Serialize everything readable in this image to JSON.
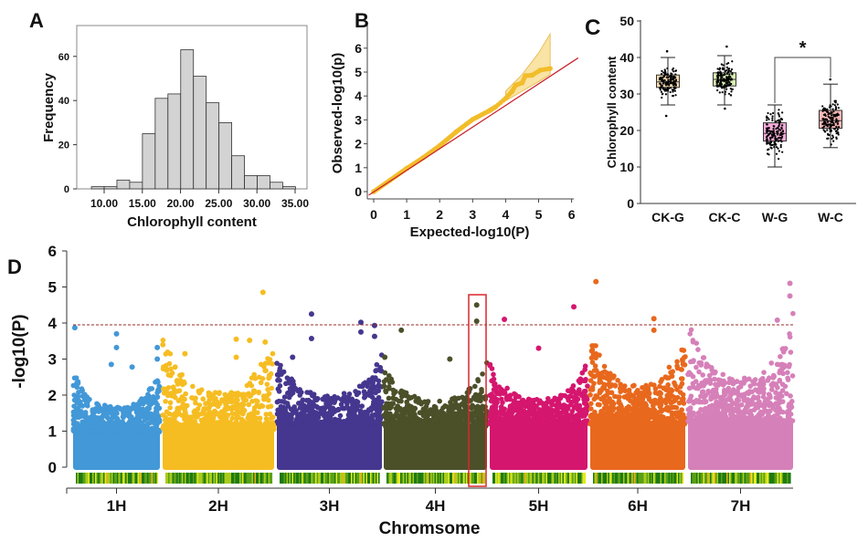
{
  "chart_data": [
    {
      "panel": "A",
      "type": "bar",
      "xlabel": "Chlorophyll content",
      "ylabel": "Frequency",
      "x_ticks": [
        "10.00",
        "15.00",
        "20.00",
        "25.00",
        "30.00",
        "35.00"
      ],
      "y_ticks": [
        "0",
        "20",
        "40",
        "60"
      ],
      "bin_start": 8.33,
      "bin_width": 1.67,
      "values": [
        1,
        1,
        4,
        3,
        25,
        41,
        43,
        63,
        51,
        39,
        30,
        15,
        6,
        6,
        3,
        1
      ],
      "xlim": [
        6.5,
        38.5
      ],
      "ylim": [
        0,
        73
      ],
      "bar_color": "#d3d3d3"
    },
    {
      "panel": "B",
      "type": "scatter",
      "xlabel": "Expected-log10(P)",
      "ylabel": "Observed-log10(p)",
      "x_ticks": [
        "0",
        "1",
        "2",
        "3",
        "4",
        "5",
        "6"
      ],
      "y_ticks": [
        "0",
        "1",
        "2",
        "3",
        "4",
        "5",
        "6"
      ],
      "xlim": [
        -0.2,
        6
      ],
      "ylim": [
        -0.1,
        7
      ],
      "reference_line_color": "#c8202a",
      "point_color": "#f2bd2a",
      "band_color": "#f6d77f",
      "points": [
        [
          0,
          0
        ],
        [
          0.5,
          0.48
        ],
        [
          1,
          0.97
        ],
        [
          1.5,
          1.42
        ],
        [
          2,
          1.92
        ],
        [
          2.5,
          2.5
        ],
        [
          3,
          3.02
        ],
        [
          3.5,
          3.38
        ],
        [
          3.7,
          3.55
        ],
        [
          4,
          3.9
        ],
        [
          4.2,
          4.2
        ],
        [
          4.3,
          4.45
        ],
        [
          4.5,
          4.55
        ],
        [
          4.6,
          4.85
        ],
        [
          4.8,
          4.87
        ],
        [
          5.05,
          5.08
        ],
        [
          5.35,
          5.15
        ]
      ],
      "band": [
        [
          4,
          3.8,
          4.2
        ],
        [
          4.5,
          4.2,
          4.9
        ],
        [
          5,
          4.6,
          5.8
        ],
        [
          5.35,
          4.9,
          6.6
        ]
      ]
    },
    {
      "panel": "C",
      "type": "box",
      "ylabel": "Chlorophyll content",
      "categories": [
        "CK-G",
        "CK-C",
        "W-G",
        "W-C"
      ],
      "y_ticks": [
        "0",
        "10",
        "20",
        "30",
        "40",
        "50"
      ],
      "ylim": [
        0,
        50
      ],
      "boxes": [
        {
          "min": 27,
          "q1": 31.8,
          "median": 33.3,
          "q3": 35.2,
          "max": 40,
          "color": "#f7dcae",
          "outliers": [
            24,
            41.7
          ]
        },
        {
          "min": 27,
          "q1": 32.2,
          "median": 34,
          "q3": 35.8,
          "max": 40.5,
          "color": "#d8efb2",
          "outliers": [
            26,
            43
          ]
        },
        {
          "min": 10,
          "q1": 17.1,
          "median": 19.2,
          "q3": 22.1,
          "max": 27,
          "color": "#f5aad9",
          "outliers": []
        },
        {
          "min": 15.3,
          "q1": 20.6,
          "median": 22.7,
          "q3": 25.5,
          "max": 32.7,
          "color": "#f7b7b5",
          "outliers": [
            34
          ]
        }
      ],
      "significance": {
        "between": [
          "W-G",
          "W-C"
        ],
        "label": "*"
      }
    },
    {
      "panel": "D",
      "type": "scatter",
      "subtype": "manhattan",
      "xlabel": "Chromsome",
      "ylabel": "-log10(P)",
      "y_ticks": [
        "0",
        "1",
        "2",
        "3",
        "4",
        "5",
        "6"
      ],
      "ylim": [
        0,
        6
      ],
      "threshold": 3.95,
      "threshold_color": "#9b2a2a",
      "highlight_box_color": "#d9262c",
      "highlight_chromosome": "4H",
      "chromosomes": [
        {
          "name": "1H",
          "color": "#4398d7",
          "peaks": [
            [
              0.02,
              3.87
            ],
            [
              0.5,
              3.7
            ],
            [
              0.5,
              3.32
            ],
            [
              0.44,
              2.85
            ],
            [
              0.68,
              2.78
            ],
            [
              0.97,
              3.32
            ],
            [
              0.97,
              3.0
            ]
          ]
        },
        {
          "name": "2H",
          "color": "#f6bd22",
          "peaks": [
            [
              0.9,
              4.85
            ],
            [
              0.2,
              3.15
            ],
            [
              0.66,
              3.55
            ],
            [
              0.78,
              3.52
            ],
            [
              0.92,
              3.47
            ],
            [
              0.66,
              3.05
            ],
            [
              0.04,
              2.7
            ]
          ]
        },
        {
          "name": "3H",
          "color": "#45378f",
          "peaks": [
            [
              0.33,
              4.25
            ],
            [
              0.33,
              3.57
            ],
            [
              0.8,
              4.02
            ],
            [
              0.8,
              3.75
            ],
            [
              0.93,
              3.93
            ],
            [
              0.93,
              3.63
            ],
            [
              0.15,
              3.05
            ]
          ]
        },
        {
          "name": "4H",
          "color": "#4b5029",
          "peaks": [
            [
              0.17,
              3.8
            ],
            [
              0.9,
              4.5
            ],
            [
              0.9,
              4.05
            ],
            [
              0.01,
              3.05
            ],
            [
              0.64,
              3.0
            ]
          ]
        },
        {
          "name": "5H",
          "color": "#d5166f",
          "peaks": [
            [
              0.15,
              4.1
            ],
            [
              0.86,
              4.45
            ],
            [
              0.5,
              3.3
            ]
          ]
        },
        {
          "name": "6H",
          "color": "#e8681d",
          "peaks": [
            [
              0.06,
              5.15
            ],
            [
              0.67,
              4.12
            ],
            [
              0.67,
              3.8
            ]
          ]
        },
        {
          "name": "7H",
          "color": "#d680b9",
          "peaks": [
            [
              0.97,
              5.1
            ],
            [
              0.97,
              4.75
            ],
            [
              0.85,
              4.08
            ]
          ]
        }
      ]
    }
  ],
  "labels": {
    "A": "A",
    "B": "B",
    "C": "C",
    "D": "D"
  }
}
